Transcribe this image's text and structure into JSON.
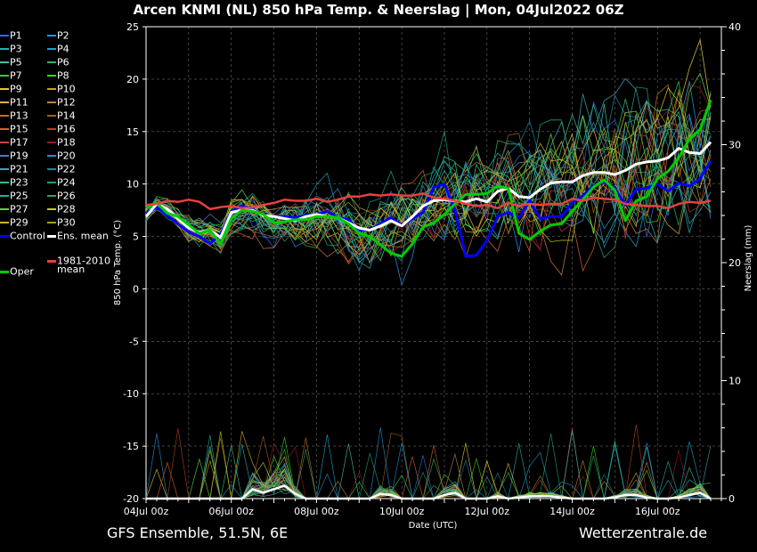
{
  "title": "Arcen KNMI  (NL)  850 hPa Temp. & Neerslag | Mon, 04Jul2022 06Z",
  "footer": {
    "left": "GFS Ensemble, 51.5N, 6E",
    "right": "Wetterzentrale.de"
  },
  "colors": {
    "background": "#000000",
    "control": "#0000ff",
    "ens_mean": "#ffffff",
    "oper": "#00cc00",
    "climatology": "#e8413c",
    "grid": "#666666",
    "members": [
      "#2f6bd8",
      "#3090e8",
      "#20b0b0",
      "#1aa0c8",
      "#40c0a0",
      "#30b060",
      "#20d050",
      "#40d020",
      "#e0c840",
      "#c8a020",
      "#e0b050",
      "#c08040",
      "#c07030",
      "#a06020",
      "#d06030",
      "#b04020",
      "#d04040",
      "#902020",
      "#4080c0",
      "#2090d0",
      "#40a0b0",
      "#2080a0",
      "#30c080",
      "#20a070",
      "#20b0a0",
      "#30a060",
      "#60d040",
      "#c0d020",
      "#d0b030",
      "#a0a020"
    ]
  },
  "legend": {
    "members": [
      "P1",
      "P2",
      "P3",
      "P4",
      "P5",
      "P6",
      "P7",
      "P8",
      "P9",
      "P10",
      "P11",
      "P12",
      "P13",
      "P14",
      "P15",
      "P16",
      "P17",
      "P18",
      "P19",
      "P20",
      "P21",
      "P22",
      "P23",
      "P24",
      "P25",
      "P26",
      "P27",
      "P28",
      "P29",
      "P30"
    ],
    "control": "Control",
    "ens_mean": "Ens. mean",
    "oper": "Oper",
    "climatology": [
      "1981-2010",
      "mean"
    ]
  },
  "chart_data": {
    "type": "line",
    "title": "Arcen KNMI  (NL)  850 hPa Temp. & Neerslag | Mon, 04Jul2022 06Z",
    "xlabel": "Date (UTC)",
    "ylabel": "850 hPa Temp. (°C)",
    "y2label": "Neerslag (mm)",
    "x_range": [
      "04Jul2022 00Z",
      "17Jul2022 12Z"
    ],
    "x_ticks": [
      "04Jul 00z",
      "06Jul 00z",
      "08Jul 00z",
      "10Jul 00z",
      "12Jul 00z",
      "14Jul 00z",
      "16Jul 00z"
    ],
    "ylim": [
      -20,
      25
    ],
    "y_ticks": [
      -20,
      -15,
      -10,
      -5,
      0,
      5,
      10,
      15,
      20,
      25
    ],
    "y2lim": [
      0,
      40
    ],
    "y2_ticks": [
      0,
      10,
      20,
      30,
      40
    ],
    "grid": true,
    "legend_position": "left",
    "x_hours": [
      6,
      12,
      18,
      24,
      30,
      36,
      42,
      48,
      54,
      60,
      66,
      72,
      78,
      84,
      90,
      96,
      102,
      108,
      114,
      120,
      126,
      132,
      138,
      144,
      150,
      156,
      162,
      168,
      174,
      180,
      186,
      192,
      198,
      204,
      210,
      216,
      222,
      228,
      234,
      240,
      246,
      252,
      258,
      264,
      270,
      276,
      282,
      288,
      294,
      300,
      306,
      312,
      318,
      324
    ],
    "series": [
      {
        "name": "Control",
        "values": [
          7.2,
          7.8,
          7.0,
          6.2,
          5.4,
          5.0,
          4.3,
          5.2,
          7.4,
          7.9,
          7.6,
          7.0,
          6.9,
          6.9,
          6.8,
          7.0,
          7.1,
          7.4,
          6.8,
          6.6,
          5.6,
          5.6,
          6.2,
          6.8,
          6.0,
          6.7,
          7.3,
          9.7,
          10.0,
          7.5,
          3.1,
          3.2,
          4.6,
          6.9,
          7.3,
          6.8,
          8.4,
          6.7,
          6.9,
          6.9,
          8.2,
          8.9,
          9.8,
          10.2,
          9.6,
          8.0,
          9.5,
          9.6,
          10.0,
          9.3,
          10.1,
          9.8,
          10.5,
          12.2
        ]
      },
      {
        "name": "Ens. mean",
        "values": [
          6.9,
          8.1,
          7.6,
          6.7,
          5.8,
          5.4,
          5.6,
          4.9,
          7.3,
          7.5,
          7.5,
          7.0,
          6.9,
          6.7,
          6.5,
          6.9,
          7.1,
          6.9,
          6.8,
          6.3,
          5.8,
          5.6,
          6.0,
          6.5,
          6.0,
          6.9,
          7.9,
          8.4,
          8.5,
          8.4,
          8.3,
          8.6,
          8.3,
          9.3,
          9.6,
          8.8,
          8.7,
          9.5,
          10.1,
          10.2,
          10.2,
          10.8,
          11.1,
          11.1,
          10.9,
          11.3,
          11.9,
          12.1,
          12.2,
          12.5,
          13.4,
          13.0,
          12.9,
          14.0
        ]
      },
      {
        "name": "Oper",
        "values": [
          7.7,
          8.2,
          7.2,
          6.9,
          6.1,
          5.3,
          5.6,
          4.3,
          6.7,
          7.5,
          7.4,
          7.1,
          6.3,
          6.4,
          6.6,
          6.6,
          6.9,
          6.9,
          6.8,
          6.2,
          5.3,
          5.0,
          4.2,
          3.4,
          3.1,
          4.3,
          5.9,
          6.3,
          7.1,
          8.1,
          9.0,
          9.0,
          9.1,
          9.8,
          9.6,
          5.3,
          4.7,
          5.5,
          6.1,
          6.2,
          7.4,
          8.5,
          9.7,
          10.4,
          9.4,
          6.5,
          8.4,
          8.8,
          10.5,
          11.2,
          12.5,
          14.3,
          15.2,
          18.0
        ]
      },
      {
        "name": "1981-2010 mean",
        "values": [
          8.0,
          8.1,
          8.4,
          8.3,
          8.5,
          8.3,
          7.6,
          7.8,
          7.9,
          7.7,
          7.8,
          8.0,
          8.2,
          8.5,
          8.4,
          8.4,
          8.6,
          8.3,
          8.5,
          8.8,
          8.8,
          9.0,
          8.9,
          9.0,
          8.9,
          8.9,
          9.1,
          8.7,
          8.6,
          8.4,
          8.1,
          7.9,
          8.0,
          7.7,
          8.2,
          7.9,
          8.1,
          8.0,
          8.1,
          8.1,
          8.6,
          8.4,
          8.7,
          8.6,
          8.5,
          8.1,
          8.0,
          7.9,
          7.9,
          7.7,
          8.1,
          8.3,
          8.2,
          8.4
        ]
      }
    ],
    "precip_mean_mm": [
      0,
      0,
      0,
      0,
      0,
      0,
      0,
      0,
      0,
      0,
      0.8,
      0.5,
      0.8,
      1.1,
      0.4,
      0,
      0,
      0,
      0,
      0,
      0,
      0,
      0.4,
      0.3,
      0,
      0,
      0,
      0,
      0.3,
      0.5,
      0,
      0,
      0,
      0.2,
      0,
      0.1,
      0.2,
      0.2,
      0.2,
      0.1,
      0,
      0,
      0,
      0,
      0.1,
      0.3,
      0.3,
      0.1,
      0,
      0,
      0.1,
      0.3,
      0.5,
      0
    ]
  }
}
